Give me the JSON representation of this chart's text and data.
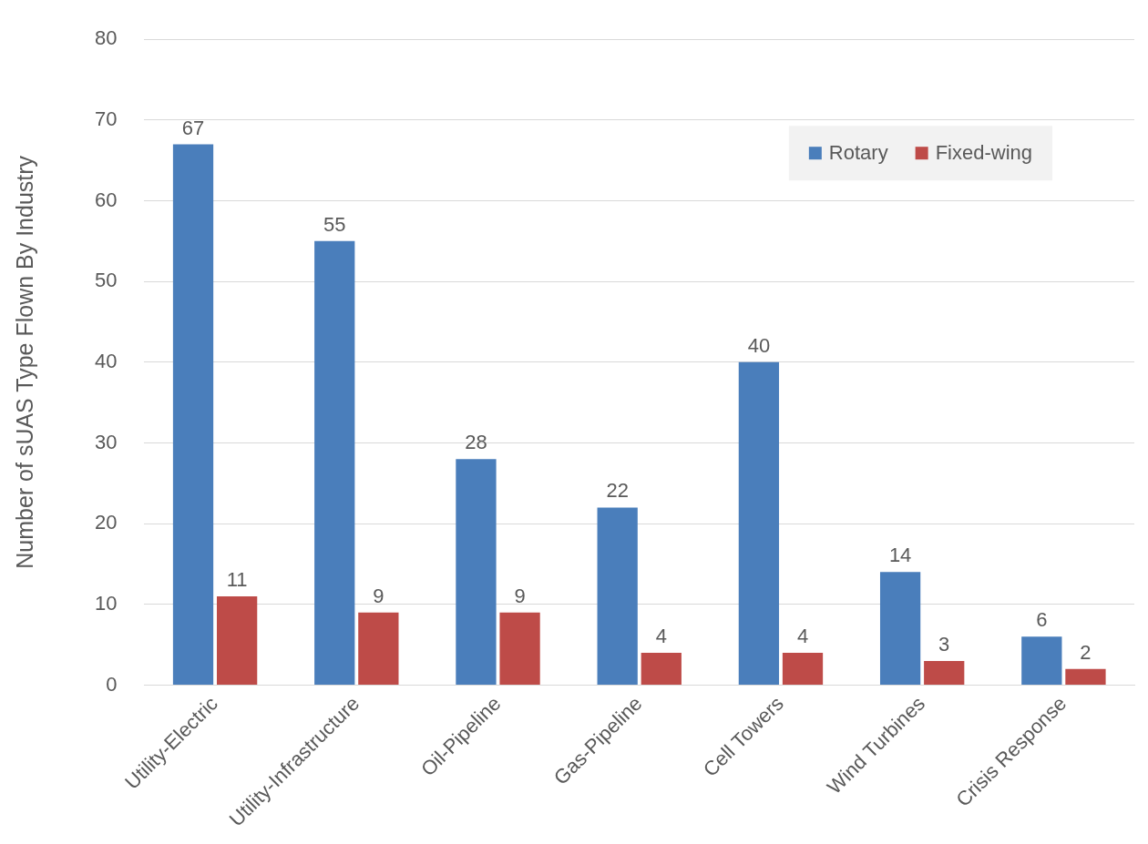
{
  "chart_data": {
    "type": "bar",
    "ylabel": "Number of sUAS Type Flown By Industry",
    "categories": [
      "Utility-Electric",
      "Utility-Infrastructure",
      "Oil-Pipeline",
      "Gas-Pipeline",
      "Cell Towers",
      "Wind Turbines",
      "Crisis Response"
    ],
    "series": [
      {
        "name": "Rotary",
        "color": "#4a7ebb",
        "values": [
          67,
          55,
          28,
          22,
          40,
          14,
          6
        ]
      },
      {
        "name": "Fixed-wing",
        "color": "#be4b48",
        "values": [
          11,
          9,
          9,
          4,
          4,
          3,
          2
        ]
      }
    ],
    "ylim": [
      0,
      80
    ],
    "yticks": [
      0,
      10,
      20,
      30,
      40,
      50,
      60,
      70,
      80
    ],
    "grid": "y",
    "legend": "top right",
    "data_labels": true
  }
}
